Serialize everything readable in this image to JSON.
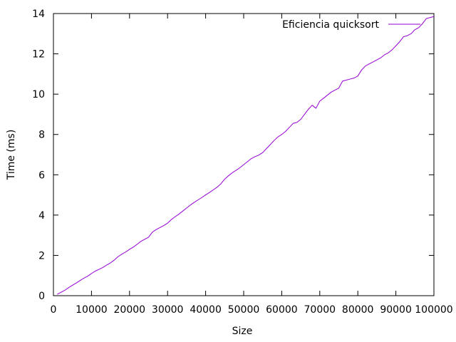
{
  "chart_data": {
    "type": "line",
    "xlabel": "Size",
    "ylabel": "Time (ms)",
    "xlim": [
      0,
      100000
    ],
    "ylim": [
      0,
      14
    ],
    "xticks": [
      0,
      10000,
      20000,
      30000,
      40000,
      50000,
      60000,
      70000,
      80000,
      90000,
      100000
    ],
    "yticks": [
      0,
      2,
      4,
      6,
      8,
      10,
      12,
      14
    ],
    "grid": false,
    "legend_position": "top-right",
    "series": [
      {
        "name": "Eficiencia quicksort",
        "color": "#9400d3",
        "x": [
          1000,
          2000,
          3000,
          4000,
          5000,
          6000,
          7000,
          8000,
          9000,
          10000,
          11000,
          12000,
          13000,
          14000,
          15000,
          16000,
          17000,
          18000,
          19000,
          20000,
          21000,
          22000,
          23000,
          24000,
          25000,
          26000,
          27000,
          28000,
          29000,
          30000,
          31000,
          32000,
          33000,
          34000,
          35000,
          36000,
          37000,
          38000,
          39000,
          40000,
          41000,
          42000,
          43000,
          44000,
          45000,
          46000,
          47000,
          48000,
          49000,
          50000,
          51000,
          52000,
          53000,
          54000,
          55000,
          56000,
          57000,
          58000,
          59000,
          60000,
          61000,
          62000,
          63000,
          64000,
          65000,
          66000,
          67000,
          68000,
          69000,
          70000,
          71000,
          72000,
          73000,
          74000,
          75000,
          76000,
          77000,
          78000,
          79000,
          80000,
          81000,
          82000,
          83000,
          84000,
          85000,
          86000,
          87000,
          88000,
          89000,
          90000,
          91000,
          92000,
          93000,
          94000,
          95000,
          96000,
          97000,
          98000,
          99000,
          100000
        ],
        "y": [
          0.07,
          0.17,
          0.27,
          0.4,
          0.52,
          0.63,
          0.75,
          0.87,
          0.97,
          1.1,
          1.22,
          1.31,
          1.4,
          1.52,
          1.63,
          1.77,
          1.94,
          2.06,
          2.17,
          2.3,
          2.41,
          2.55,
          2.7,
          2.8,
          2.9,
          3.15,
          3.28,
          3.38,
          3.48,
          3.6,
          3.78,
          3.92,
          4.05,
          4.2,
          4.35,
          4.5,
          4.63,
          4.75,
          4.87,
          5.0,
          5.12,
          5.25,
          5.38,
          5.55,
          5.78,
          5.95,
          6.1,
          6.22,
          6.35,
          6.5,
          6.65,
          6.8,
          6.9,
          6.98,
          7.1,
          7.3,
          7.5,
          7.7,
          7.88,
          8.0,
          8.15,
          8.35,
          8.55,
          8.6,
          8.75,
          9.0,
          9.25,
          9.45,
          9.3,
          9.65,
          9.8,
          9.95,
          10.1,
          10.2,
          10.3,
          10.65,
          10.7,
          10.75,
          10.8,
          10.9,
          11.2,
          11.4,
          11.5,
          11.6,
          11.7,
          11.8,
          11.95,
          12.05,
          12.2,
          12.4,
          12.6,
          12.85,
          12.9,
          13.0,
          13.2,
          13.3,
          13.5,
          13.75,
          13.8,
          13.85
        ]
      }
    ]
  }
}
